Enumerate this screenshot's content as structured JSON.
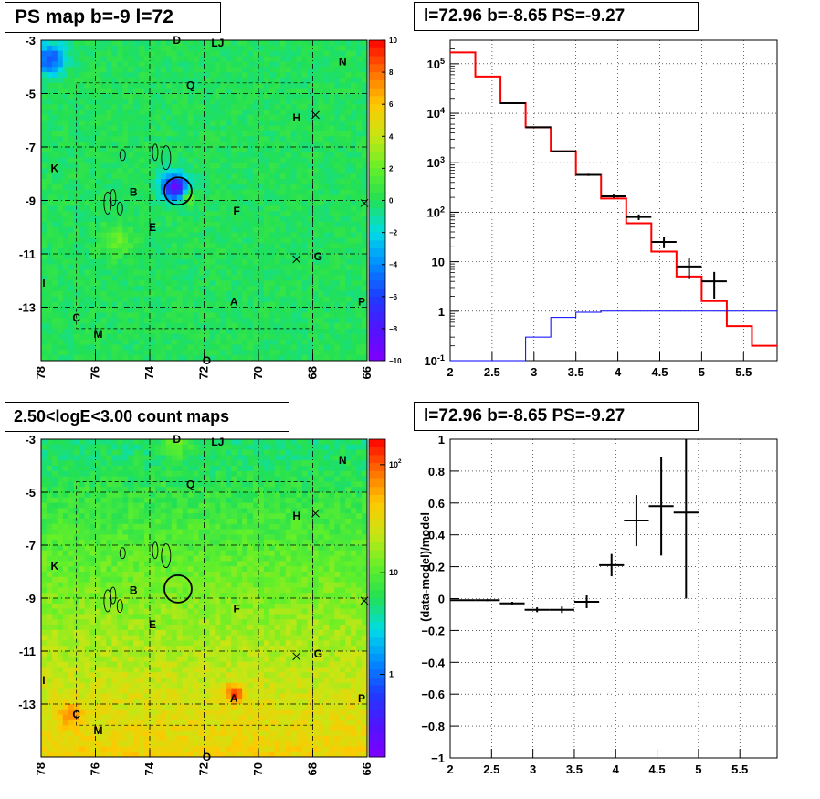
{
  "titles": {
    "ps_map": "PS map b=-9 l=72",
    "spectrum": "l=72.96 b=-8.65 PS=-9.27",
    "count_map": "2.50<logE<3.00 count maps",
    "residual": "l=72.96 b=-8.65 PS=-9.27"
  },
  "colors": {
    "model_line": "#ff0000",
    "background_line": "#0000ff",
    "data_points": "#000000",
    "map_dominant_ps": "#22e055",
    "map_dominant_counts": "#c8e032"
  },
  "chart_data": [
    {
      "type": "heatmap",
      "title": "PS map b=-9 l=72",
      "x_ticks": [
        "78",
        "76",
        "74",
        "72",
        "70",
        "68",
        "66"
      ],
      "y_ticks": [
        "-3",
        "-5",
        "-7",
        "-9",
        "-11",
        "-13"
      ],
      "xlim": [
        78,
        66
      ],
      "ylim": [
        -3,
        -15
      ],
      "colorbar_ticks": [
        "10",
        "8",
        "6",
        "4",
        "2",
        "0",
        "−2",
        "−4",
        "−6",
        "−8",
        "−10"
      ],
      "colorbar_range": [
        -10,
        10
      ],
      "source_labels": [
        {
          "name": "D",
          "l": 73.0,
          "b": -3.0
        },
        {
          "name": "LJ",
          "l": 71.5,
          "b": -3.1
        },
        {
          "name": "N",
          "l": 66.9,
          "b": -3.8
        },
        {
          "name": "Q",
          "l": 72.5,
          "b": -4.7
        },
        {
          "name": "H",
          "l": 68.6,
          "b": -5.9
        },
        {
          "name": "K",
          "l": 77.5,
          "b": -7.8
        },
        {
          "name": "B",
          "l": 74.6,
          "b": -8.7
        },
        {
          "name": "F",
          "l": 70.8,
          "b": -9.4
        },
        {
          "name": "E",
          "l": 73.9,
          "b": -10.0
        },
        {
          "name": "G",
          "l": 67.8,
          "b": -11.1
        },
        {
          "name": "I",
          "l": 77.9,
          "b": -12.1
        },
        {
          "name": "A",
          "l": 70.9,
          "b": -12.8
        },
        {
          "name": "P",
          "l": 66.2,
          "b": -12.8
        },
        {
          "name": "C",
          "l": 76.7,
          "b": -13.4
        },
        {
          "name": "M",
          "l": 75.9,
          "b": -14.0
        },
        {
          "name": "O",
          "l": 71.9,
          "b": -15.0
        }
      ],
      "circle": {
        "l": 72.96,
        "b": -8.65
      }
    },
    {
      "type": "line",
      "title": "l=72.96 b=-8.65 PS=-9.27",
      "xlim": [
        2,
        5.9
      ],
      "ylim": [
        0.1,
        300000
      ],
      "yscale": "log",
      "x_ticks": [
        "2",
        "2.5",
        "3",
        "3.5",
        "4",
        "4.5",
        "5",
        "5.5"
      ],
      "y_ticks": [
        "10^{-1}",
        "1",
        "10",
        "10^{2}",
        "10^{3}",
        "10^{4}",
        "10^{5}"
      ],
      "grid": true,
      "bin_edges": [
        2.0,
        2.3,
        2.6,
        2.9,
        3.2,
        3.5,
        3.8,
        4.1,
        4.4,
        4.7,
        5.0,
        5.3,
        5.6,
        5.9
      ],
      "series": [
        {
          "values": [
            170000,
            55000,
            16000,
            5200,
            1700,
            570,
            190,
            60,
            16,
            5,
            1.6,
            0.5,
            0.2
          ]
        },
        {
          "values": [
            0.0,
            0.0,
            0.0,
            0.3,
            0.75,
            0.95,
            1.0,
            1.0,
            1.0,
            1.0,
            1.0,
            1.0,
            1.0,
            1.0
          ]
        },
        {
          "x": [
            2.75,
            3.05,
            3.35,
            3.65,
            3.95,
            4.25,
            4.55,
            4.85,
            5.15
          ],
          "values": [
            16000,
            5200,
            1700,
            570,
            210,
            80,
            25,
            8,
            4
          ],
          "xerr": [
            0.15,
            0.15,
            0.15,
            0.15,
            0.15,
            0.15,
            0.15,
            0.15,
            0.15
          ],
          "yerr_frac": [
            0.01,
            0.02,
            0.03,
            0.05,
            0.08,
            0.13,
            0.25,
            0.45,
            0.55
          ]
        }
      ]
    },
    {
      "type": "heatmap",
      "title": "2.50<logE<3.00 count maps",
      "x_ticks": [
        "78",
        "76",
        "74",
        "72",
        "70",
        "68",
        "66"
      ],
      "y_ticks": [
        "-3",
        "-5",
        "-7",
        "-9",
        "-11",
        "-13"
      ],
      "xlim": [
        78,
        66
      ],
      "ylim": [
        -3,
        -15
      ],
      "colorbar_ticks": [
        "10^{2}",
        "10",
        "1"
      ],
      "colorbar_scale": "log"
    },
    {
      "type": "scatter",
      "title": "l=72.96 b=-8.65 PS=-9.27",
      "ylabel": "(data-model)/model",
      "xlim": [
        2,
        5.95
      ],
      "ylim": [
        -1,
        1
      ],
      "x_ticks": [
        "2",
        "2.5",
        "3",
        "3.5",
        "4",
        "4.5",
        "5",
        "5.5"
      ],
      "y_ticks": [
        "1",
        "0.8",
        "0.6",
        "0.4",
        "0.2",
        "0",
        "−0.2",
        "−0.4",
        "−0.6",
        "−0.8",
        "−1"
      ],
      "grid": true,
      "x": [
        2.15,
        2.45,
        2.75,
        3.05,
        3.35,
        3.65,
        3.95,
        4.25,
        4.55,
        4.85
      ],
      "values": [
        -0.01,
        -0.01,
        -0.03,
        -0.07,
        -0.07,
        -0.02,
        0.21,
        0.49,
        0.58,
        0.54
      ],
      "xerr": [
        0.15,
        0.15,
        0.15,
        0.15,
        0.15,
        0.15,
        0.15,
        0.15,
        0.15,
        0.15
      ],
      "yerr": [
        0.004,
        0.006,
        0.01,
        0.015,
        0.02,
        0.04,
        0.07,
        0.16,
        0.31,
        0.54
      ]
    }
  ]
}
